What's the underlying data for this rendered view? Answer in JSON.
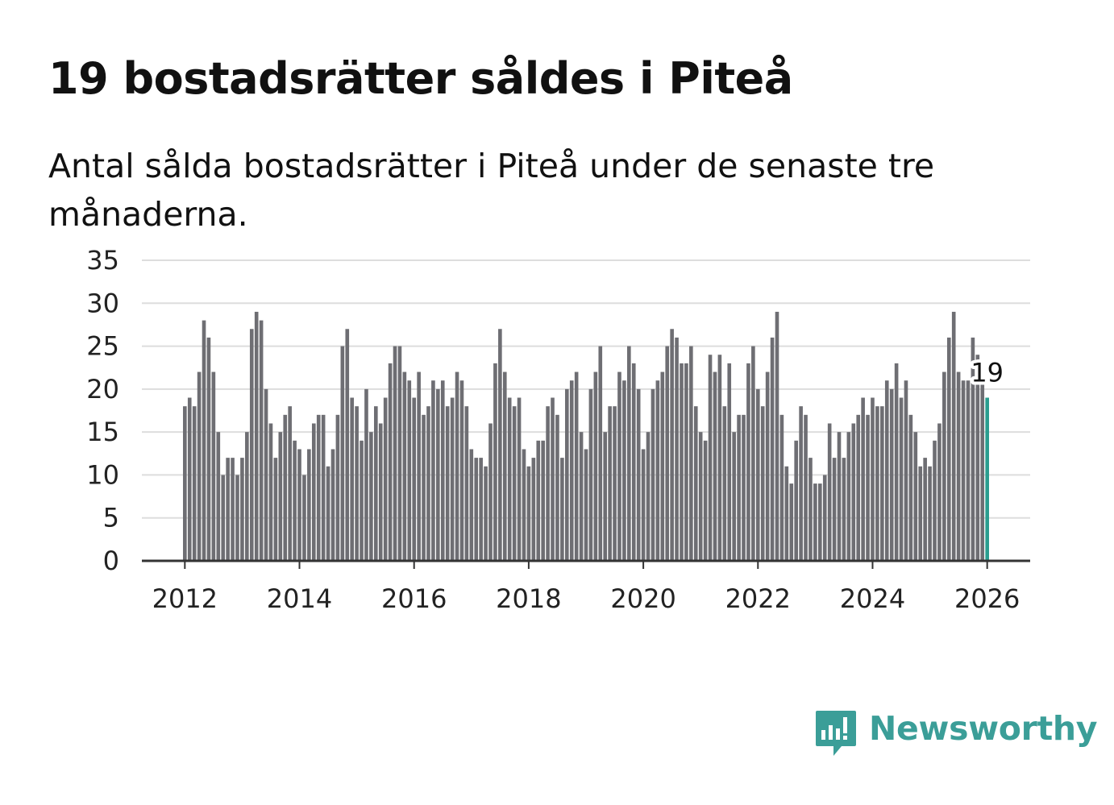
{
  "header": {
    "title": "19 bostadsrätter såldes i Piteå",
    "subtitle": "Antal sålda bostadsrätter i Piteå under de senaste tre månaderna."
  },
  "brand": {
    "name": "Newsworthy",
    "icon": "newsworthy-logo-icon",
    "color": "#3b9e98"
  },
  "colors": {
    "bar": "#6e6e73",
    "highlight": "#2a9d8f",
    "grid": "#dddddd",
    "axis": "#333333"
  },
  "chart_data": {
    "type": "bar",
    "title": "19 bostadsrätter såldes i Piteå",
    "subtitle": "Antal sålda bostadsrätter i Piteå under de senaste tre månaderna.",
    "xlabel": "",
    "ylabel": "",
    "ylim": [
      0,
      35
    ],
    "yticks": [
      0,
      5,
      10,
      15,
      20,
      25,
      30,
      35
    ],
    "xticks": [
      2012,
      2014,
      2016,
      2018,
      2020,
      2022,
      2024,
      2026
    ],
    "xlim": [
      2011.25,
      2026.75
    ],
    "start_year": 2012,
    "start_month": 1,
    "frequency": "monthly",
    "grid": true,
    "values": [
      18,
      19,
      18,
      22,
      28,
      26,
      22,
      15,
      10,
      12,
      12,
      10,
      12,
      15,
      27,
      29,
      28,
      20,
      16,
      12,
      15,
      17,
      18,
      14,
      13,
      10,
      13,
      16,
      17,
      17,
      11,
      13,
      17,
      25,
      27,
      19,
      18,
      14,
      20,
      15,
      18,
      16,
      19,
      23,
      25,
      25,
      22,
      21,
      19,
      22,
      17,
      18,
      21,
      20,
      21,
      18,
      19,
      22,
      21,
      18,
      13,
      12,
      12,
      11,
      16,
      23,
      27,
      22,
      19,
      18,
      19,
      13,
      11,
      12,
      14,
      14,
      18,
      19,
      17,
      12,
      20,
      21,
      22,
      15,
      13,
      20,
      22,
      25,
      15,
      18,
      18,
      22,
      21,
      25,
      23,
      20,
      13,
      15,
      20,
      21,
      22,
      25,
      27,
      26,
      23,
      23,
      25,
      18,
      15,
      14,
      24,
      22,
      24,
      18,
      23,
      15,
      17,
      17,
      23,
      25,
      20,
      18,
      22,
      26,
      29,
      17,
      11,
      9,
      14,
      18,
      17,
      12,
      9,
      9,
      10,
      16,
      12,
      15,
      12,
      15,
      16,
      17,
      19,
      17,
      19,
      18,
      18,
      21,
      20,
      23,
      19,
      21,
      17,
      15,
      11,
      12,
      11,
      14,
      16,
      22,
      26,
      29,
      22,
      21,
      21,
      26,
      24,
      21,
      19
    ],
    "annotation": {
      "label": "19",
      "value": 19,
      "index": 168
    }
  }
}
